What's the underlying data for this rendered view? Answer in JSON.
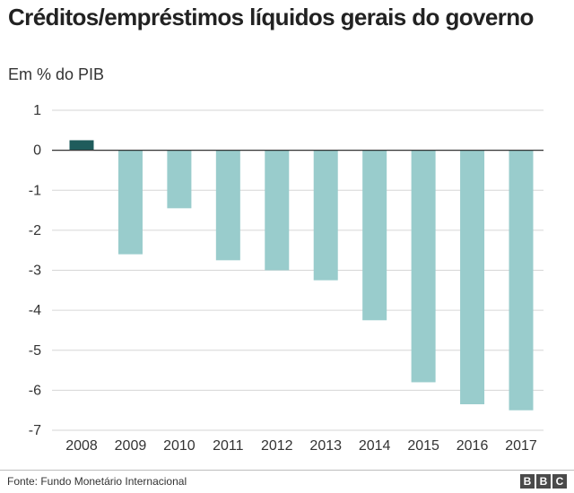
{
  "header": {
    "title": "Créditos/empréstimos líquidos gerais do governo",
    "subtitle": "Em % do PIB"
  },
  "footer": {
    "source": "Fonte: Fundo Monetário Internacional",
    "logo_letters": [
      "B",
      "B",
      "C"
    ]
  },
  "colors": {
    "positive_bar": "#1f5c5c",
    "negative_bar": "#99cccc",
    "gridline": "#d6d6d6",
    "zero_line": "#333333"
  },
  "chart_data": {
    "type": "bar",
    "title": "Créditos/empréstimos líquidos gerais do governo",
    "subtitle": "Em % do PIB",
    "xlabel": "",
    "ylabel": "",
    "categories": [
      "2008",
      "2009",
      "2010",
      "2011",
      "2012",
      "2013",
      "2014",
      "2015",
      "2016",
      "2017"
    ],
    "values": [
      0.25,
      -2.6,
      -1.45,
      -2.75,
      -3.0,
      -3.25,
      -4.25,
      -5.8,
      -6.35,
      -6.5
    ],
    "ylim": [
      -7,
      1
    ],
    "yticks": [
      1,
      0,
      -1,
      -2,
      -3,
      -4,
      -5,
      -6,
      -7
    ],
    "grid": true,
    "legend": "none"
  }
}
